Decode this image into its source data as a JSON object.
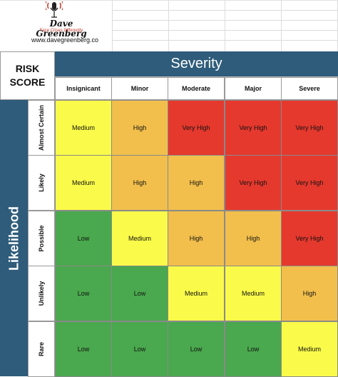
{
  "logo": {
    "name": "Dave Greenberg",
    "tagline": "Face Crises Differently",
    "website": "www.davegreenberg.co"
  },
  "matrix": {
    "corner_label": "RISK SCORE",
    "severity_title": "Severity",
    "likelihood_title": "Likelihood",
    "severity_levels": [
      "Insignicant",
      "Minor",
      "Moderate",
      "Major",
      "Severe"
    ],
    "likelihood_levels": [
      "Almost Certain",
      "Likely",
      "Possible",
      "Unlikely",
      "Rare"
    ],
    "cells": [
      [
        "Medium",
        "High",
        "Very High",
        "Very High",
        "Very High"
      ],
      [
        "Medium",
        "High",
        "High",
        "Very High",
        "Very High"
      ],
      [
        "Low",
        "Medium",
        "High",
        "High",
        "Very High"
      ],
      [
        "Low",
        "Low",
        "Medium",
        "Medium",
        "High"
      ],
      [
        "Low",
        "Low",
        "Low",
        "Low",
        "Medium"
      ]
    ]
  },
  "colors": {
    "header_blue": "#2e5c7a",
    "Low": "#4aa84e",
    "Medium": "#fafa4a",
    "High": "#f2bf4c",
    "Very High": "#e5392e"
  }
}
